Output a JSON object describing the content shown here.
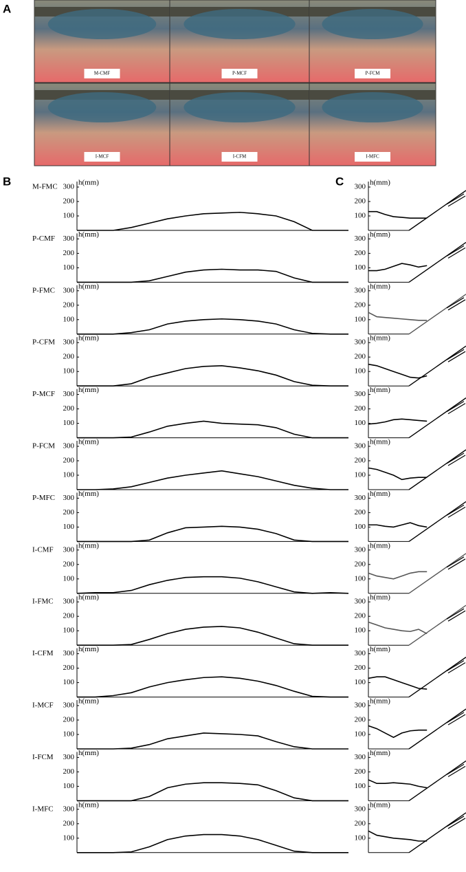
{
  "figure": {
    "panels": [
      "A",
      "B",
      "C"
    ],
    "photos": [
      "M-CMF",
      "P-MCF",
      "P-FCM",
      "I-MCF",
      "I-CFM",
      "I-MFC"
    ]
  },
  "chart_data": [
    {
      "type": "line",
      "title": "M-FMC",
      "y_label": "h(mm)",
      "ylim": [
        0,
        300
      ],
      "yticks": [
        100,
        200,
        300
      ],
      "color": "#000000",
      "values": [
        0,
        0,
        0,
        20,
        50,
        80,
        100,
        115,
        120,
        125,
        115,
        100,
        60,
        0,
        0,
        0
      ]
    },
    {
      "type": "line",
      "title": "P-CMF",
      "y_label": "h(mm)",
      "ylim": [
        0,
        300
      ],
      "yticks": [
        100,
        200,
        300
      ],
      "color": "#000000",
      "values": [
        0,
        0,
        0,
        0,
        10,
        40,
        70,
        85,
        90,
        85,
        85,
        75,
        30,
        0,
        0,
        0
      ]
    },
    {
      "type": "line",
      "title": "P-FMC",
      "y_label": "h(mm)",
      "ylim": [
        0,
        300
      ],
      "yticks": [
        100,
        200,
        300
      ],
      "color": "#000000",
      "values": [
        0,
        0,
        0,
        10,
        30,
        70,
        90,
        100,
        105,
        100,
        90,
        70,
        30,
        5,
        0,
        0
      ]
    },
    {
      "type": "line",
      "title": "P-CFM",
      "y_label": "h(mm)",
      "ylim": [
        0,
        300
      ],
      "yticks": [
        100,
        200,
        300
      ],
      "color": "#000000",
      "values": [
        0,
        0,
        0,
        15,
        60,
        90,
        120,
        135,
        140,
        125,
        105,
        75,
        30,
        5,
        0,
        0
      ]
    },
    {
      "type": "line",
      "title": "P-MCF",
      "y_label": "h(mm)",
      "ylim": [
        0,
        300
      ],
      "yticks": [
        100,
        200,
        300
      ],
      "color": "#000000",
      "values": [
        0,
        0,
        0,
        5,
        40,
        80,
        100,
        115,
        100,
        95,
        90,
        70,
        25,
        0,
        0,
        0
      ]
    },
    {
      "type": "line",
      "title": "P-FCM",
      "y_label": "h(mm)",
      "ylim": [
        0,
        300
      ],
      "yticks": [
        100,
        200,
        300
      ],
      "color": "#000000",
      "values": [
        0,
        0,
        5,
        20,
        50,
        80,
        100,
        115,
        130,
        110,
        90,
        60,
        30,
        10,
        0,
        0
      ]
    },
    {
      "type": "line",
      "title": "P-MFC",
      "y_label": "h(mm)",
      "ylim": [
        0,
        300
      ],
      "yticks": [
        100,
        200,
        300
      ],
      "color": "#000000",
      "values": [
        0,
        0,
        0,
        0,
        10,
        60,
        95,
        100,
        105,
        100,
        85,
        55,
        10,
        0,
        0,
        0
      ]
    },
    {
      "type": "line",
      "title": "I-CMF",
      "y_label": "h(mm)",
      "ylim": [
        0,
        300
      ],
      "yticks": [
        100,
        200,
        300
      ],
      "color": "#000000",
      "values": [
        0,
        5,
        5,
        20,
        60,
        90,
        110,
        115,
        115,
        105,
        80,
        45,
        10,
        0,
        5,
        0
      ]
    },
    {
      "type": "line",
      "title": "I-FMC",
      "y_label": "h(mm)",
      "ylim": [
        0,
        300
      ],
      "yticks": [
        100,
        200,
        300
      ],
      "color": "#000000",
      "values": [
        0,
        0,
        0,
        5,
        40,
        80,
        110,
        125,
        130,
        120,
        90,
        50,
        10,
        0,
        0,
        0
      ]
    },
    {
      "type": "line",
      "title": "I-CFM",
      "y_label": "h(mm)",
      "ylim": [
        0,
        300
      ],
      "yticks": [
        100,
        200,
        300
      ],
      "color": "#000000",
      "values": [
        0,
        0,
        10,
        30,
        70,
        100,
        120,
        135,
        140,
        130,
        110,
        80,
        40,
        5,
        0,
        0
      ]
    },
    {
      "type": "line",
      "title": "I-MCF",
      "y_label": "h(mm)",
      "ylim": [
        0,
        300
      ],
      "yticks": [
        100,
        200,
        300
      ],
      "color": "#000000",
      "values": [
        0,
        0,
        0,
        5,
        30,
        70,
        90,
        110,
        105,
        100,
        90,
        50,
        15,
        0,
        0,
        0
      ]
    },
    {
      "type": "line",
      "title": "I-FCM",
      "y_label": "h(mm)",
      "ylim": [
        0,
        300
      ],
      "yticks": [
        100,
        200,
        300
      ],
      "color": "#000000",
      "values": [
        0,
        0,
        0,
        0,
        30,
        90,
        115,
        125,
        125,
        120,
        110,
        70,
        20,
        0,
        0,
        0
      ]
    },
    {
      "type": "line",
      "title": "I-MFC",
      "y_label": "h(mm)",
      "ylim": [
        0,
        300
      ],
      "yticks": [
        100,
        200,
        300
      ],
      "color": "#000000",
      "values": [
        0,
        0,
        0,
        5,
        40,
        90,
        115,
        125,
        125,
        115,
        90,
        50,
        10,
        0,
        0,
        0
      ]
    },
    {
      "type": "line",
      "y_label": "h(mm)",
      "ylim": [
        0,
        300
      ],
      "yticks": [
        100,
        200,
        300
      ],
      "color": "#000000",
      "values": [
        130,
        130,
        110,
        95,
        90,
        85,
        85,
        85
      ]
    },
    {
      "type": "line",
      "y_label": "h(mm)",
      "ylim": [
        0,
        300
      ],
      "yticks": [
        100,
        200,
        300
      ],
      "color": "#000000",
      "values": [
        80,
        80,
        90,
        110,
        130,
        120,
        105,
        115
      ]
    },
    {
      "type": "line",
      "y_label": "h(mm)",
      "ylim": [
        0,
        300
      ],
      "yticks": [
        100,
        200,
        300
      ],
      "color": "#555555",
      "values": [
        150,
        120,
        115,
        110,
        105,
        100,
        95,
        95
      ]
    },
    {
      "type": "line",
      "y_label": "h(mm)",
      "ylim": [
        0,
        300
      ],
      "yticks": [
        100,
        200,
        300
      ],
      "color": "#000000",
      "values": [
        150,
        140,
        120,
        100,
        80,
        60,
        55,
        70
      ]
    },
    {
      "type": "line",
      "y_label": "h(mm)",
      "ylim": [
        0,
        300
      ],
      "yticks": [
        100,
        200,
        300
      ],
      "color": "#000000",
      "values": [
        95,
        100,
        110,
        125,
        130,
        125,
        120,
        115
      ]
    },
    {
      "type": "line",
      "y_label": "h(mm)",
      "ylim": [
        0,
        300
      ],
      "yticks": [
        100,
        200,
        300
      ],
      "color": "#000000",
      "values": [
        150,
        140,
        120,
        100,
        70,
        80,
        85,
        85
      ]
    },
    {
      "type": "line",
      "y_label": "h(mm)",
      "ylim": [
        0,
        300
      ],
      "yticks": [
        100,
        200,
        300
      ],
      "color": "#000000",
      "values": [
        115,
        115,
        105,
        100,
        115,
        130,
        110,
        100
      ]
    },
    {
      "type": "line",
      "y_label": "h(mm)",
      "ylim": [
        0,
        300
      ],
      "yticks": [
        100,
        200,
        300
      ],
      "color": "#555555",
      "values": [
        140,
        120,
        110,
        100,
        120,
        140,
        150,
        150
      ]
    },
    {
      "type": "line",
      "y_label": "h(mm)",
      "ylim": [
        0,
        300
      ],
      "yticks": [
        100,
        200,
        300
      ],
      "color": "#555555",
      "values": [
        160,
        140,
        120,
        110,
        100,
        95,
        110,
        80
      ]
    },
    {
      "type": "line",
      "y_label": "h(mm)",
      "ylim": [
        0,
        300
      ],
      "yticks": [
        100,
        200,
        300
      ],
      "color": "#000000",
      "values": [
        130,
        140,
        140,
        120,
        100,
        80,
        60,
        55
      ]
    },
    {
      "type": "line",
      "y_label": "h(mm)",
      "ylim": [
        0,
        300
      ],
      "yticks": [
        100,
        200,
        300
      ],
      "color": "#000000",
      "values": [
        160,
        140,
        110,
        80,
        110,
        125,
        130,
        130
      ]
    },
    {
      "type": "line",
      "y_label": "h(mm)",
      "ylim": [
        0,
        300
      ],
      "yticks": [
        100,
        200,
        300
      ],
      "color": "#000000",
      "values": [
        145,
        120,
        120,
        125,
        120,
        115,
        100,
        90
      ]
    },
    {
      "type": "line",
      "y_label": "h(mm)",
      "ylim": [
        0,
        300
      ],
      "yticks": [
        100,
        200,
        300
      ],
      "color": "#000000",
      "values": [
        150,
        120,
        110,
        100,
        95,
        90,
        80,
        80
      ]
    }
  ]
}
